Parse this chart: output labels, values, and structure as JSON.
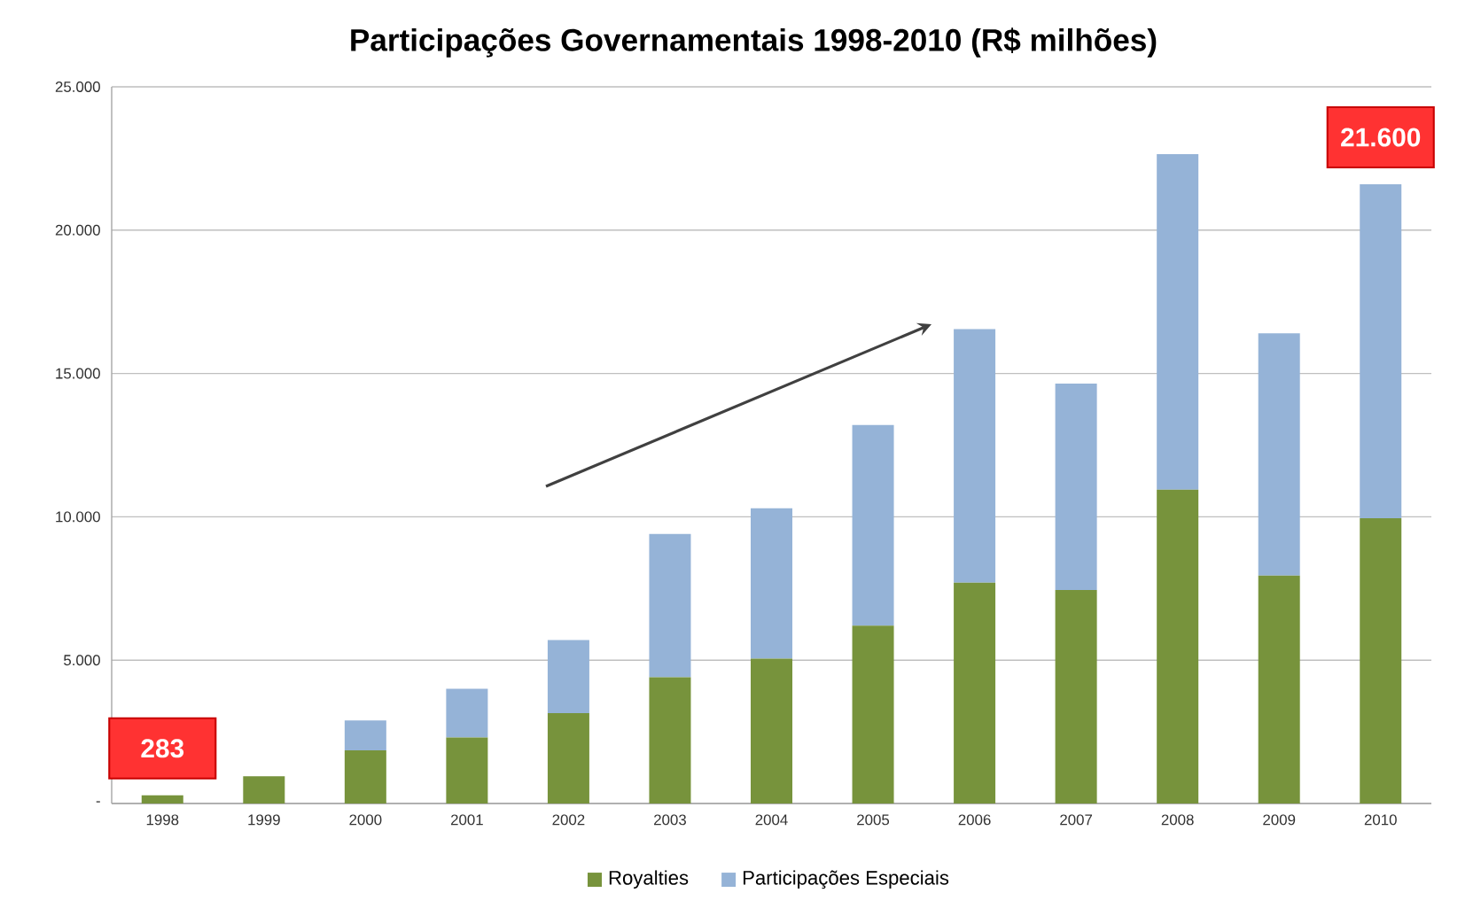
{
  "chart_data": {
    "type": "bar",
    "title": "Participações Governamentais 1998-2010 (R$ milhões)",
    "categories": [
      "1998",
      "1999",
      "2000",
      "2001",
      "2002",
      "2003",
      "2004",
      "2005",
      "2006",
      "2007",
      "2008",
      "2009",
      "2010"
    ],
    "stacked": true,
    "series": [
      {
        "name": "Royalties",
        "color": "#77933c",
        "values": [
          283,
          950,
          1850,
          2300,
          3150,
          4400,
          5050,
          6200,
          7700,
          7450,
          10950,
          7950,
          9950
        ]
      },
      {
        "name": "Participações Especiais",
        "color": "#95b3d7",
        "values": [
          0,
          0,
          1050,
          1700,
          2550,
          5000,
          5250,
          7000,
          8850,
          7200,
          11700,
          8450,
          11650
        ]
      }
    ],
    "ylim": [
      0,
      25000
    ],
    "yticks": [
      {
        "value": 0,
        "label": "-"
      },
      {
        "value": 5000,
        "label": "5.000"
      },
      {
        "value": 10000,
        "label": "10.000"
      },
      {
        "value": 15000,
        "label": "15.000"
      },
      {
        "value": 20000,
        "label": "20.000"
      },
      {
        "value": 25000,
        "label": "25.000"
      }
    ],
    "grid": "y",
    "legend": "bottom",
    "annotations": [
      {
        "text": "283",
        "x": "1998",
        "y": 283
      },
      {
        "text": "21.600",
        "x": "2010",
        "y": 21600
      }
    ]
  }
}
